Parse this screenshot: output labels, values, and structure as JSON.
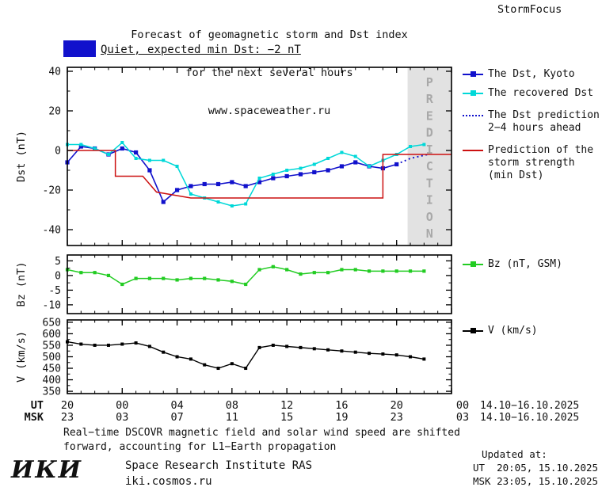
{
  "header": {
    "line1": "Forecast of geomagnetic storm and Dst index",
    "line2": "for the next several hours",
    "line3": "www.spaceweather.ru",
    "brand": "StormFocus"
  },
  "status": {
    "label": "Quiet, expected min Dst: −2 nT"
  },
  "colors": {
    "blue": "#1111cc",
    "cyan": "#00d8d8",
    "red": "#cc1111",
    "green": "#22cc22",
    "black": "#000000",
    "band": "#e2e2e2",
    "band_text": "#a8a8a8"
  },
  "legend": {
    "dst_kyoto": "The Dst, Kyoto",
    "recovered": "The recovered Dst",
    "pred_l1": "The Dst prediction",
    "pred_l2": "2−4 hours ahead",
    "storm_l1": "Prediction of the",
    "storm_l2": "storm strength",
    "storm_l3": "(min Dst)",
    "bz": "Bz (nT, GSM)",
    "v": "V (km/s)"
  },
  "xaxis": {
    "ut_label": "UT",
    "msk_label": "MSK",
    "ut_ticks": [
      "20",
      "00",
      "04",
      "08",
      "12",
      "16",
      "20",
      "00"
    ],
    "msk_ticks": [
      "23",
      "03",
      "07",
      "11",
      "15",
      "19",
      "23",
      "03"
    ],
    "ut_date": "14.10−16.10.2025",
    "msk_date": "14.10−16.10.2025"
  },
  "footer": {
    "note1": "Real−time DSCOVR magnetic field and solar wind speed are shifted",
    "note2": "forward, accounting for L1−Earth propagation",
    "logo": "ИКИ",
    "institute": "Space Research Institute RAS",
    "site": "iki.cosmos.ru",
    "updated_label": "Updated at:",
    "updated_ut": "UT  20:05, 15.10.2025",
    "updated_msk": "MSK 23:05, 15.10.2025"
  },
  "chart_data": [
    {
      "type": "line",
      "title": "Dst index forecast",
      "ylabel": "Dst (nT)",
      "ylim": [
        -48,
        42
      ],
      "yticks": [
        40,
        20,
        0,
        -20,
        -40
      ],
      "yminor": [
        30,
        10,
        -10,
        -30
      ],
      "xlim": [
        0,
        28
      ],
      "xticks": [
        0,
        4,
        8,
        12,
        16,
        20,
        24,
        28
      ],
      "prediction_band": {
        "from": 24.8,
        "to": 28,
        "label": "PREDICTION"
      },
      "series": [
        {
          "name": "The Dst, Kyoto",
          "color": "#1111cc",
          "marker": true,
          "msize": 5.2,
          "width": 1.6,
          "x": [
            0,
            1,
            2,
            3,
            4,
            5,
            6,
            7,
            8,
            9,
            10,
            11,
            12,
            13,
            14,
            15,
            16,
            17,
            18,
            19,
            20,
            21,
            22,
            23,
            24
          ],
          "y": [
            -6,
            2,
            1,
            -2,
            1,
            -1,
            -10,
            -26,
            -20,
            -18,
            -17,
            -17,
            -16,
            -18,
            -16,
            -14,
            -13,
            -12,
            -11,
            -10,
            -8,
            -6,
            -8,
            -9,
            -7
          ]
        },
        {
          "name": "The recovered Dst",
          "color": "#00d8d8",
          "marker": true,
          "msize": 4,
          "width": 1.5,
          "x": [
            0,
            1,
            2,
            3,
            4,
            5,
            6,
            7,
            8,
            9,
            10,
            11,
            12,
            13,
            14,
            15,
            16,
            17,
            18,
            19,
            20,
            21,
            22,
            23,
            24,
            25,
            26
          ],
          "y": [
            3,
            3,
            1,
            -2,
            4,
            -4,
            -5,
            -5,
            -8,
            -22,
            -24,
            -26,
            -28,
            -27,
            -14,
            -12,
            -10,
            -9,
            -7,
            -4,
            -1,
            -3,
            -8,
            -5,
            -2,
            2,
            3
          ]
        },
        {
          "name": "The Dst prediction 2−4 hours ahead",
          "color": "#1111cc",
          "dotted": true,
          "width": 1.9,
          "x": [
            24,
            25,
            26.3
          ],
          "y": [
            -7,
            -4,
            -2
          ]
        },
        {
          "name": "Prediction of the storm strength (min Dst)",
          "color": "#cc1111",
          "width": 1.5,
          "x": [
            0,
            3.5,
            3.5,
            5.5,
            6.5,
            9,
            23,
            23,
            28
          ],
          "y": [
            0,
            0,
            -13,
            -13,
            -21,
            -24,
            -24,
            -2,
            -2
          ]
        }
      ]
    },
    {
      "type": "line",
      "title": "Bz GSM",
      "ylabel": "Bz (nT)",
      "ylim": [
        -13,
        7
      ],
      "yticks": [
        5,
        0,
        -5,
        -10
      ],
      "yminor": [
        2.5,
        -2.5,
        -7.5
      ],
      "xlim": [
        0,
        28
      ],
      "xticks": [
        0,
        4,
        8,
        12,
        16,
        20,
        24,
        28
      ],
      "series": [
        {
          "name": "Bz (nT, GSM)",
          "color": "#22cc22",
          "marker": true,
          "msize": 4.2,
          "width": 1.5,
          "x": [
            0,
            1,
            2,
            3,
            4,
            5,
            6,
            7,
            8,
            9,
            10,
            11,
            12,
            13,
            14,
            15,
            16,
            17,
            18,
            19,
            20,
            21,
            22,
            23,
            24,
            25,
            26
          ],
          "y": [
            2,
            1,
            1,
            0,
            -3,
            -1,
            -1,
            -1,
            -1.5,
            -1,
            -1,
            -1.5,
            -2,
            -3,
            2,
            3,
            2,
            0.5,
            1,
            1,
            2,
            2,
            1.5,
            1.5,
            1.5,
            1.5,
            1.5
          ]
        }
      ]
    },
    {
      "type": "line",
      "title": "Solar wind speed",
      "ylabel": "V (km/s)",
      "ylim": [
        340,
        660
      ],
      "yticks": [
        650,
        600,
        550,
        500,
        450,
        400,
        350
      ],
      "yminor": [
        625,
        575,
        525,
        475,
        425,
        375
      ],
      "xlim": [
        0,
        28
      ],
      "xticks": [
        0,
        4,
        8,
        12,
        16,
        20,
        24,
        28
      ],
      "series": [
        {
          "name": "V (km/s)",
          "color": "#000000",
          "marker": true,
          "msize": 4,
          "width": 1.4,
          "x": [
            0,
            1,
            2,
            3,
            4,
            5,
            6,
            7,
            8,
            9,
            10,
            11,
            12,
            13,
            14,
            15,
            16,
            17,
            18,
            19,
            20,
            21,
            22,
            23,
            24,
            25,
            26
          ],
          "y": [
            565,
            555,
            550,
            550,
            555,
            560,
            545,
            520,
            500,
            490,
            465,
            450,
            470,
            450,
            540,
            550,
            545,
            540,
            535,
            530,
            525,
            520,
            515,
            512,
            508,
            500,
            490
          ]
        }
      ]
    }
  ]
}
